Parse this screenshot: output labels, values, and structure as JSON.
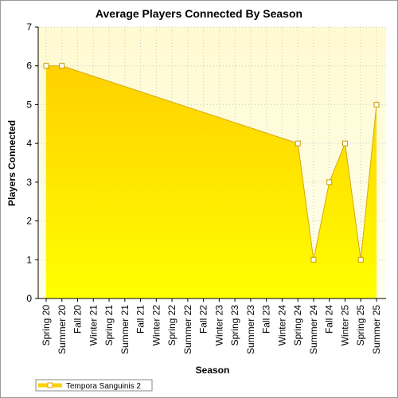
{
  "chart_data": {
    "type": "area",
    "title": "Average Players Connected By Season",
    "xlabel": "Season",
    "ylabel": "Players Connected",
    "categories": [
      "Spring 20",
      "Summer 20",
      "Fall 20",
      "Winter 21",
      "Spring 21",
      "Summer 21",
      "Fall 21",
      "Winter 22",
      "Spring 22",
      "Summer 22",
      "Fall 22",
      "Winter 23",
      "Spring 23",
      "Summer 23",
      "Fall 23",
      "Winter 24",
      "Spring 24",
      "Summer 24",
      "Fall 24",
      "Winter 25",
      "Spring 25",
      "Summer 25"
    ],
    "series": [
      {
        "name": "Tempora Sanguinis 2",
        "points": [
          {
            "category": "Spring 20",
            "value": 6
          },
          {
            "category": "Summer 20",
            "value": 6
          },
          {
            "category": "Spring 24",
            "value": 4
          },
          {
            "category": "Summer 24",
            "value": 1
          },
          {
            "category": "Fall 24",
            "value": 3
          },
          {
            "category": "Winter 25",
            "value": 4
          },
          {
            "category": "Spring 25",
            "value": 1
          },
          {
            "category": "Summer 25",
            "value": 5
          }
        ],
        "color": "#FFD700"
      }
    ],
    "ylim": [
      0,
      7
    ],
    "yticks": [
      0,
      1,
      2,
      3,
      4,
      5,
      6,
      7
    ],
    "grid": true,
    "legend_position": "bottom-left",
    "plot_background": "#FFFDE0"
  }
}
